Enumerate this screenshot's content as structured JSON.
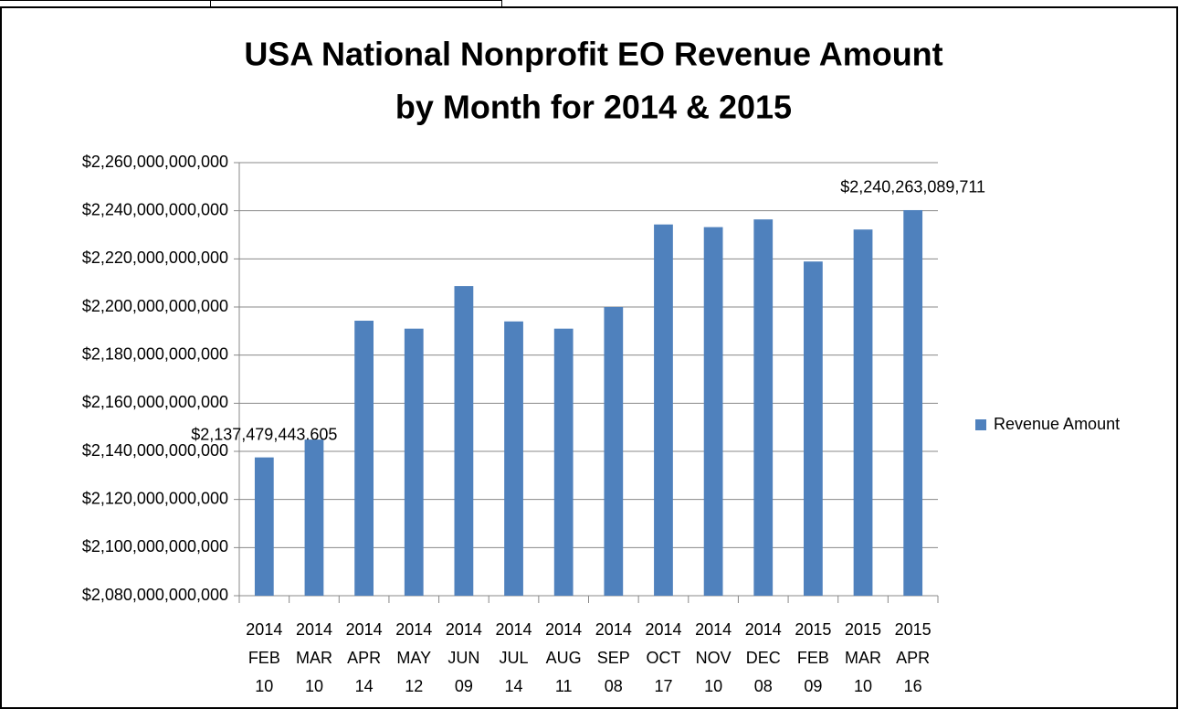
{
  "chart_data": {
    "type": "bar",
    "title": [
      "USA National Nonprofit EO Revenue Amount",
      "by Month for 2014 & 2015"
    ],
    "categories": [
      "2014 FEB 10",
      "2014 MAR 10",
      "2014 APR 14",
      "2014 MAY 12",
      "2014 JUN 09",
      "2014 JUL 14",
      "2014 AUG 11",
      "2014 SEP 08",
      "2014 OCT 17",
      "2014 NOV 10",
      "2014 DEC 08",
      "2015 FEB 09",
      "2015 MAR 10",
      "2015 APR 16"
    ],
    "series": [
      {
        "name": "Revenue Amount",
        "color": "#4f81bd",
        "values": [
          2137479443605,
          2144900000000,
          2194300000000,
          2191000000000,
          2208700000000,
          2194000000000,
          2191000000000,
          2200000000000,
          2234300000000,
          2233200000000,
          2236400000000,
          2218900000000,
          2232200000000,
          2240263089711
        ],
        "value_labels": [
          "$2,137,479,443,605",
          null,
          null,
          null,
          null,
          null,
          null,
          null,
          null,
          null,
          null,
          null,
          null,
          "$2,240,263,089,711"
        ]
      }
    ],
    "ylim": [
      2080000000000,
      2260000000000
    ],
    "yticks": [
      {
        "value": 2080000000000,
        "label": "$2,080,000,000,000"
      },
      {
        "value": 2100000000000,
        "label": "$2,100,000,000,000"
      },
      {
        "value": 2120000000000,
        "label": "$2,120,000,000,000"
      },
      {
        "value": 2140000000000,
        "label": "$2,140,000,000,000"
      },
      {
        "value": 2160000000000,
        "label": "$2,160,000,000,000"
      },
      {
        "value": 2180000000000,
        "label": "$2,180,000,000,000"
      },
      {
        "value": 2200000000000,
        "label": "$2,200,000,000,000"
      },
      {
        "value": 2220000000000,
        "label": "$2,220,000,000,000"
      },
      {
        "value": 2240000000000,
        "label": "$2,240,000,000,000"
      },
      {
        "value": 2260000000000,
        "label": "$2,260,000,000,000"
      }
    ],
    "grid": true,
    "legend": "right"
  }
}
